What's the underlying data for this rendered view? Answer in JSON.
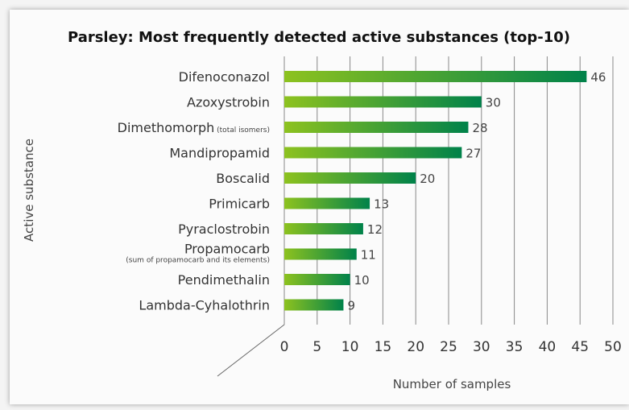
{
  "chart_data": {
    "type": "bar",
    "orientation": "horizontal",
    "title": "Parsley: Most frequently detected active substances (top-10)",
    "xlabel": "Number of samples",
    "ylabel": "Active substance",
    "categories": [
      "Difenoconazol",
      "Azoxystrobin",
      "Dimethomorph",
      "Mandipropamid",
      "Boscalid",
      "Primicarb",
      "Pyraclostrobin",
      "Propamocarb",
      "Pendimethalin",
      "Lambda-Cyhalothrin"
    ],
    "category_notes": [
      "",
      "",
      "(total isomers)",
      "",
      "",
      "",
      "",
      "(sum of propamocarb and its elements)",
      "",
      ""
    ],
    "values": [
      46,
      30,
      28,
      27,
      20,
      13,
      12,
      11,
      10,
      9
    ],
    "xlim": [
      0,
      50
    ],
    "xticks": [
      0,
      5,
      10,
      15,
      20,
      25,
      30,
      35,
      40,
      45,
      50
    ],
    "grid": true,
    "legend": "none",
    "colors": {
      "bar_light": "#8dc21f",
      "bar_dark": "#00824a",
      "grid": "#888888"
    }
  }
}
